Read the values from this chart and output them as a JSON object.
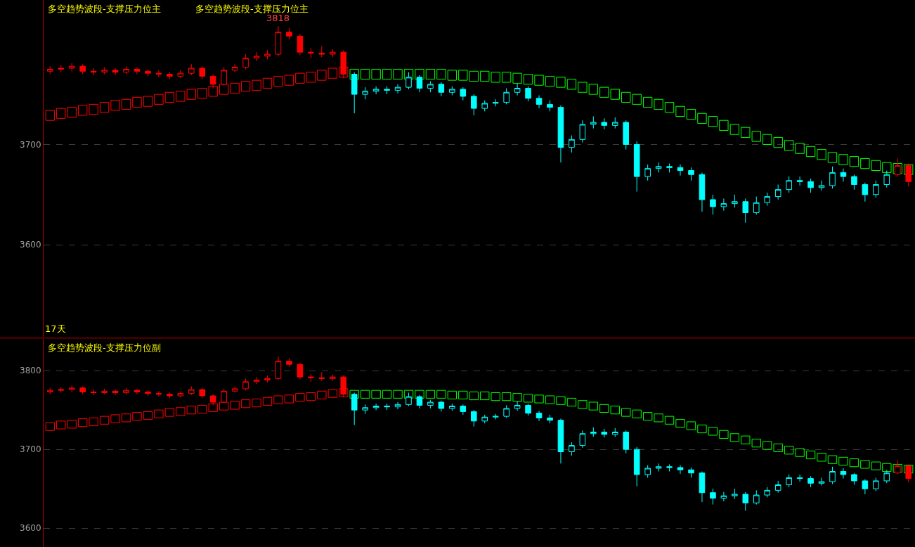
{
  "chart_data": [
    {
      "type": "candlestick",
      "title": "多空趋势波段-支撑压力位主",
      "subtitle": "多空趋势波段-支撑压力位主",
      "categories": [
        null,
        null,
        null,
        null,
        null,
        null,
        null,
        null,
        null,
        null,
        null,
        null,
        null,
        null,
        null,
        null,
        null,
        null,
        null,
        null,
        null,
        null,
        null,
        null,
        null,
        null,
        null,
        null,
        null,
        null,
        null,
        null,
        null,
        null,
        null,
        null,
        null,
        null,
        null,
        null,
        null,
        null,
        null,
        null,
        null,
        null,
        null,
        null,
        null,
        null,
        null,
        null,
        null,
        null,
        null,
        null,
        null,
        null,
        null,
        null,
        null,
        null,
        null,
        null,
        null,
        null,
        null,
        null,
        null,
        null,
        null,
        null,
        null,
        null,
        null,
        null,
        null,
        null,
        null,
        null
      ],
      "ohlc": [
        [
          3773,
          3778,
          3770,
          3775
        ],
        [
          3775,
          3779,
          3772,
          3776
        ],
        [
          3776,
          3781,
          3773,
          3778
        ],
        [
          3778,
          3780,
          3770,
          3773
        ],
        [
          3773,
          3776,
          3769,
          3772
        ],
        [
          3772,
          3777,
          3770,
          3774
        ],
        [
          3774,
          3776,
          3769,
          3772
        ],
        [
          3772,
          3778,
          3770,
          3775
        ],
        [
          3775,
          3777,
          3770,
          3773
        ],
        [
          3773,
          3775,
          3768,
          3771
        ],
        [
          3771,
          3774,
          3767,
          3770
        ],
        [
          3770,
          3772,
          3765,
          3768
        ],
        [
          3768,
          3774,
          3766,
          3771
        ],
        [
          3771,
          3780,
          3769,
          3776
        ],
        [
          3776,
          3778,
          3765,
          3768
        ],
        [
          3768,
          3770,
          3756,
          3760
        ],
        [
          3760,
          3777,
          3759,
          3774
        ],
        [
          3774,
          3780,
          3772,
          3777
        ],
        [
          3777,
          3790,
          3775,
          3786
        ],
        [
          3786,
          3792,
          3783,
          3788
        ],
        [
          3788,
          3794,
          3785,
          3790
        ],
        [
          3790,
          3818,
          3788,
          3812
        ],
        [
          3812,
          3816,
          3805,
          3808
        ],
        [
          3808,
          3810,
          3789,
          3792
        ],
        [
          3792,
          3796,
          3786,
          3791
        ],
        [
          3791,
          3798,
          3787,
          3790
        ],
        [
          3790,
          3795,
          3787,
          3792
        ],
        [
          3792,
          3794,
          3766,
          3770
        ],
        [
          3770,
          3772,
          3731,
          3750
        ],
        [
          3750,
          3757,
          3745,
          3753
        ],
        [
          3753,
          3758,
          3750,
          3755
        ],
        [
          3755,
          3758,
          3750,
          3754
        ],
        [
          3754,
          3760,
          3751,
          3757
        ],
        [
          3757,
          3772,
          3755,
          3767
        ],
        [
          3767,
          3769,
          3752,
          3756
        ],
        [
          3756,
          3763,
          3752,
          3760
        ],
        [
          3760,
          3762,
          3748,
          3752
        ],
        [
          3752,
          3758,
          3749,
          3755
        ],
        [
          3755,
          3757,
          3744,
          3748
        ],
        [
          3748,
          3750,
          3729,
          3736
        ],
        [
          3736,
          3744,
          3733,
          3741
        ],
        [
          3741,
          3745,
          3738,
          3742
        ],
        [
          3742,
          3756,
          3740,
          3752
        ],
        [
          3752,
          3761,
          3749,
          3756
        ],
        [
          3756,
          3758,
          3743,
          3746
        ],
        [
          3746,
          3749,
          3736,
          3740
        ],
        [
          3740,
          3744,
          3733,
          3737
        ],
        [
          3737,
          3739,
          3682,
          3697
        ],
        [
          3697,
          3709,
          3692,
          3705
        ],
        [
          3705,
          3724,
          3702,
          3720
        ],
        [
          3720,
          3728,
          3716,
          3722
        ],
        [
          3722,
          3726,
          3715,
          3719
        ],
        [
          3719,
          3727,
          3716,
          3722
        ],
        [
          3722,
          3724,
          3695,
          3700
        ],
        [
          3700,
          3703,
          3653,
          3668
        ],
        [
          3668,
          3680,
          3664,
          3676
        ],
        [
          3676,
          3682,
          3672,
          3678
        ],
        [
          3678,
          3681,
          3672,
          3677
        ],
        [
          3677,
          3680,
          3669,
          3674
        ],
        [
          3674,
          3677,
          3664,
          3670
        ],
        [
          3670,
          3672,
          3633,
          3645
        ],
        [
          3645,
          3650,
          3630,
          3638
        ],
        [
          3638,
          3646,
          3634,
          3641
        ],
        [
          3641,
          3650,
          3637,
          3643
        ],
        [
          3643,
          3646,
          3622,
          3632
        ],
        [
          3632,
          3648,
          3630,
          3642
        ],
        [
          3642,
          3652,
          3639,
          3648
        ],
        [
          3648,
          3660,
          3645,
          3655
        ],
        [
          3655,
          3668,
          3652,
          3664
        ],
        [
          3664,
          3668,
          3659,
          3663
        ],
        [
          3663,
          3666,
          3652,
          3657
        ],
        [
          3657,
          3664,
          3654,
          3659
        ],
        [
          3659,
          3678,
          3656,
          3672
        ],
        [
          3672,
          3676,
          3663,
          3668
        ],
        [
          3668,
          3670,
          3655,
          3660
        ],
        [
          3660,
          3662,
          3643,
          3650
        ],
        [
          3650,
          3664,
          3647,
          3660
        ],
        [
          3660,
          3674,
          3657,
          3670
        ],
        [
          3670,
          3686,
          3668,
          3679
        ],
        [
          3679,
          3681,
          3658,
          3663
        ]
      ],
      "colors": [
        "#ff0000",
        "#ff0000",
        "#ff0000",
        "#ff0000",
        "#ff0000",
        "#ff0000",
        "#ff0000",
        "#ff0000",
        "#ff0000",
        "#ff0000",
        "#ff0000",
        "#ff0000",
        "#ff0000",
        "#ff0000",
        "#ff0000",
        "#ff0000",
        "#ff0000",
        "#ff0000",
        "#ff0000",
        "#ff0000",
        "#ff0000",
        "#ff0000",
        "#ff0000",
        "#ff0000",
        "#ff0000",
        "#ff0000",
        "#ff0000",
        "#ff0000",
        "#00ffff",
        "#00ffff",
        "#00ffff",
        "#00ffff",
        "#00ffff",
        "#00ffff",
        "#00ffff",
        "#00ffff",
        "#00ffff",
        "#00ffff",
        "#00ffff",
        "#00ffff",
        "#00ffff",
        "#00ffff",
        "#00ffff",
        "#00ffff",
        "#00ffff",
        "#00ffff",
        "#00ffff",
        "#00ffff",
        "#00ffff",
        "#00ffff",
        "#00ffff",
        "#00ffff",
        "#00ffff",
        "#00ffff",
        "#00ffff",
        "#00ffff",
        "#00ffff",
        "#00ffff",
        "#00ffff",
        "#00ffff",
        "#00ffff",
        "#00ffff",
        "#00ffff",
        "#00ffff",
        "#00ffff",
        "#00ffff",
        "#00ffff",
        "#00ffff",
        "#00ffff",
        "#00ffff",
        "#00ffff",
        "#00ffff",
        "#00ffff",
        "#00ffff",
        "#00ffff",
        "#00ffff",
        "#00ffff",
        "#00ffff",
        "#ff0000",
        "#ff0000"
      ],
      "series": [
        {
          "type": "bar",
          "color": "#ff0000",
          "base": [
            3724,
            3726,
            3727,
            3729,
            3730,
            3732,
            3734,
            3735,
            3737,
            3738,
            3740,
            3742,
            3743,
            3745,
            3746,
            3748,
            3750,
            3751,
            3753,
            3754,
            3756,
            3758,
            3759,
            3761,
            3762,
            3764,
            3766,
            3767,
            null,
            null,
            null,
            null,
            null,
            null,
            null,
            null,
            null,
            null,
            null,
            null,
            null,
            null,
            null,
            null,
            null,
            null,
            null,
            null,
            null,
            null,
            null,
            null,
            null,
            null,
            null,
            null,
            null,
            null,
            null,
            null,
            null,
            null,
            null,
            null,
            null,
            null,
            null,
            null,
            null,
            null,
            null,
            null,
            null,
            null,
            null,
            null,
            null,
            null,
            null,
            null
          ],
          "values": [
            10,
            10,
            10,
            10,
            10,
            10,
            10,
            10,
            10,
            10,
            10,
            10,
            10,
            10,
            10,
            10,
            10,
            10,
            10,
            10,
            10,
            10,
            10,
            10,
            10,
            10,
            10,
            10,
            null,
            null,
            null,
            null,
            null,
            null,
            null,
            null,
            null,
            null,
            null,
            null,
            null,
            null,
            null,
            null,
            null,
            null,
            null,
            null,
            null,
            null,
            null,
            null,
            null,
            null,
            null,
            null,
            null,
            null,
            null,
            null,
            null,
            null,
            null,
            null,
            null,
            null,
            null,
            null,
            null,
            null,
            null,
            null,
            null,
            null,
            null,
            null,
            null,
            null,
            null,
            null
          ]
        },
        {
          "type": "bar",
          "color": "#00ff00",
          "base": [
            null,
            null,
            null,
            null,
            null,
            null,
            null,
            null,
            null,
            null,
            null,
            null,
            null,
            null,
            null,
            null,
            null,
            null,
            null,
            null,
            null,
            null,
            null,
            null,
            null,
            null,
            null,
            null,
            3765,
            3765,
            3765,
            3765,
            3765,
            3765,
            3765,
            3765,
            3765,
            3764,
            3764,
            3763,
            3763,
            3762,
            3762,
            3761,
            3760,
            3759,
            3758,
            3757,
            3755,
            3752,
            3750,
            3747,
            3745,
            3742,
            3740,
            3737,
            3735,
            3732,
            3728,
            3725,
            3721,
            3718,
            3714,
            3710,
            3707,
            3703,
            3700,
            3697,
            3694,
            3691,
            3688,
            3685,
            3682,
            3680,
            3678,
            3676,
            3674,
            3672,
            3671,
            3670
          ],
          "values": [
            null,
            null,
            null,
            null,
            null,
            null,
            null,
            null,
            null,
            null,
            null,
            null,
            null,
            null,
            null,
            null,
            null,
            null,
            null,
            null,
            null,
            null,
            null,
            null,
            null,
            null,
            null,
            null,
            10,
            10,
            10,
            10,
            10,
            10,
            10,
            10,
            10,
            10,
            10,
            10,
            10,
            10,
            10,
            10,
            10,
            10,
            10,
            10,
            10,
            10,
            10,
            10,
            10,
            10,
            10,
            10,
            10,
            10,
            10,
            10,
            10,
            10,
            10,
            10,
            10,
            10,
            10,
            10,
            10,
            10,
            10,
            10,
            10,
            10,
            10,
            10,
            10,
            10,
            10,
            10
          ]
        }
      ],
      "ylim": [
        3508,
        3844
      ],
      "yticks": [
        3600,
        3700
      ],
      "grid": "y",
      "tick_labels": "y",
      "ref_lines": [
        {
          "axis": "y",
          "value": 3700,
          "color": "#8b0000",
          "line_style": "dashed"
        }
      ],
      "annotations": [
        {
          "text": "3818",
          "y": 3818
        },
        "17天"
      ]
    },
    {
      "type": "candlestick",
      "title": "多空趋势波段-支撑压力位副",
      "categories": [
        null,
        null,
        null,
        null,
        null,
        null,
        null,
        null,
        null,
        null,
        null,
        null,
        null,
        null,
        null,
        null,
        null,
        null,
        null,
        null,
        null,
        null,
        null,
        null,
        null,
        null,
        null,
        null,
        null,
        null,
        null,
        null,
        null,
        null,
        null,
        null,
        null,
        null,
        null,
        null,
        null,
        null,
        null,
        null,
        null,
        null,
        null,
        null,
        null,
        null,
        null,
        null,
        null,
        null,
        null,
        null,
        null,
        null,
        null,
        null,
        null,
        null,
        null,
        null,
        null,
        null,
        null,
        null,
        null,
        null,
        null,
        null,
        null,
        null,
        null,
        null,
        null,
        null,
        null,
        null
      ],
      "ohlc": [
        [
          3773,
          3778,
          3770,
          3775
        ],
        [
          3775,
          3779,
          3772,
          3776
        ],
        [
          3776,
          3781,
          3773,
          3778
        ],
        [
          3778,
          3780,
          3770,
          3773
        ],
        [
          3773,
          3776,
          3769,
          3772
        ],
        [
          3772,
          3777,
          3770,
          3774
        ],
        [
          3774,
          3776,
          3769,
          3772
        ],
        [
          3772,
          3778,
          3770,
          3775
        ],
        [
          3775,
          3777,
          3770,
          3773
        ],
        [
          3773,
          3775,
          3768,
          3771
        ],
        [
          3771,
          3774,
          3767,
          3770
        ],
        [
          3770,
          3772,
          3765,
          3768
        ],
        [
          3768,
          3774,
          3766,
          3771
        ],
        [
          3771,
          3780,
          3769,
          3776
        ],
        [
          3776,
          3778,
          3765,
          3768
        ],
        [
          3768,
          3770,
          3756,
          3760
        ],
        [
          3760,
          3777,
          3759,
          3774
        ],
        [
          3774,
          3780,
          3772,
          3777
        ],
        [
          3777,
          3790,
          3775,
          3786
        ],
        [
          3786,
          3792,
          3783,
          3788
        ],
        [
          3788,
          3794,
          3785,
          3790
        ],
        [
          3790,
          3818,
          3788,
          3812
        ],
        [
          3812,
          3816,
          3805,
          3808
        ],
        [
          3808,
          3810,
          3789,
          3792
        ],
        [
          3792,
          3796,
          3786,
          3791
        ],
        [
          3791,
          3798,
          3787,
          3790
        ],
        [
          3790,
          3795,
          3787,
          3792
        ],
        [
          3792,
          3794,
          3766,
          3770
        ],
        [
          3770,
          3772,
          3731,
          3750
        ],
        [
          3750,
          3757,
          3745,
          3753
        ],
        [
          3753,
          3758,
          3750,
          3755
        ],
        [
          3755,
          3758,
          3750,
          3754
        ],
        [
          3754,
          3760,
          3751,
          3757
        ],
        [
          3757,
          3772,
          3755,
          3767
        ],
        [
          3767,
          3769,
          3752,
          3756
        ],
        [
          3756,
          3763,
          3752,
          3760
        ],
        [
          3760,
          3762,
          3748,
          3752
        ],
        [
          3752,
          3758,
          3749,
          3755
        ],
        [
          3755,
          3757,
          3744,
          3748
        ],
        [
          3748,
          3750,
          3729,
          3736
        ],
        [
          3736,
          3744,
          3733,
          3741
        ],
        [
          3741,
          3745,
          3738,
          3742
        ],
        [
          3742,
          3756,
          3740,
          3752
        ],
        [
          3752,
          3761,
          3749,
          3756
        ],
        [
          3756,
          3758,
          3743,
          3746
        ],
        [
          3746,
          3749,
          3736,
          3740
        ],
        [
          3740,
          3744,
          3733,
          3737
        ],
        [
          3737,
          3739,
          3682,
          3697
        ],
        [
          3697,
          3709,
          3692,
          3705
        ],
        [
          3705,
          3724,
          3702,
          3720
        ],
        [
          3720,
          3728,
          3716,
          3722
        ],
        [
          3722,
          3726,
          3715,
          3719
        ],
        [
          3719,
          3727,
          3716,
          3722
        ],
        [
          3722,
          3724,
          3695,
          3700
        ],
        [
          3700,
          3703,
          3653,
          3668
        ],
        [
          3668,
          3680,
          3664,
          3676
        ],
        [
          3676,
          3682,
          3672,
          3678
        ],
        [
          3678,
          3681,
          3672,
          3677
        ],
        [
          3677,
          3680,
          3669,
          3674
        ],
        [
          3674,
          3677,
          3664,
          3670
        ],
        [
          3670,
          3672,
          3633,
          3645
        ],
        [
          3645,
          3650,
          3630,
          3638
        ],
        [
          3638,
          3646,
          3634,
          3641
        ],
        [
          3641,
          3650,
          3637,
          3643
        ],
        [
          3643,
          3646,
          3622,
          3632
        ],
        [
          3632,
          3648,
          3630,
          3642
        ],
        [
          3642,
          3652,
          3639,
          3648
        ],
        [
          3648,
          3660,
          3645,
          3655
        ],
        [
          3655,
          3668,
          3652,
          3664
        ],
        [
          3664,
          3668,
          3659,
          3663
        ],
        [
          3663,
          3666,
          3652,
          3657
        ],
        [
          3657,
          3664,
          3654,
          3659
        ],
        [
          3659,
          3678,
          3656,
          3672
        ],
        [
          3672,
          3676,
          3663,
          3668
        ],
        [
          3668,
          3670,
          3655,
          3660
        ],
        [
          3660,
          3662,
          3643,
          3650
        ],
        [
          3650,
          3664,
          3647,
          3660
        ],
        [
          3660,
          3674,
          3657,
          3670
        ],
        [
          3670,
          3686,
          3668,
          3679
        ],
        [
          3679,
          3681,
          3658,
          3663
        ]
      ],
      "colors": [
        "#ff0000",
        "#ff0000",
        "#ff0000",
        "#ff0000",
        "#ff0000",
        "#ff0000",
        "#ff0000",
        "#ff0000",
        "#ff0000",
        "#ff0000",
        "#ff0000",
        "#ff0000",
        "#ff0000",
        "#ff0000",
        "#ff0000",
        "#ff0000",
        "#ff0000",
        "#ff0000",
        "#ff0000",
        "#ff0000",
        "#ff0000",
        "#ff0000",
        "#ff0000",
        "#ff0000",
        "#ff0000",
        "#ff0000",
        "#ff0000",
        "#ff0000",
        "#00ffff",
        "#00ffff",
        "#00ffff",
        "#00ffff",
        "#00ffff",
        "#00ffff",
        "#00ffff",
        "#00ffff",
        "#00ffff",
        "#00ffff",
        "#00ffff",
        "#00ffff",
        "#00ffff",
        "#00ffff",
        "#00ffff",
        "#00ffff",
        "#00ffff",
        "#00ffff",
        "#00ffff",
        "#00ffff",
        "#00ffff",
        "#00ffff",
        "#00ffff",
        "#00ffff",
        "#00ffff",
        "#00ffff",
        "#00ffff",
        "#00ffff",
        "#00ffff",
        "#00ffff",
        "#00ffff",
        "#00ffff",
        "#00ffff",
        "#00ffff",
        "#00ffff",
        "#00ffff",
        "#00ffff",
        "#00ffff",
        "#00ffff",
        "#00ffff",
        "#00ffff",
        "#00ffff",
        "#00ffff",
        "#00ffff",
        "#00ffff",
        "#00ffff",
        "#00ffff",
        "#00ffff",
        "#00ffff",
        "#00ffff",
        "#ff0000",
        "#ff0000"
      ],
      "series": [
        {
          "type": "bar",
          "color": "#ff0000",
          "base": [
            3724,
            3726,
            3727,
            3729,
            3730,
            3732,
            3734,
            3735,
            3737,
            3738,
            3740,
            3742,
            3743,
            3745,
            3746,
            3748,
            3750,
            3751,
            3753,
            3754,
            3756,
            3758,
            3759,
            3761,
            3762,
            3764,
            3766,
            3767,
            null,
            null,
            null,
            null,
            null,
            null,
            null,
            null,
            null,
            null,
            null,
            null,
            null,
            null,
            null,
            null,
            null,
            null,
            null,
            null,
            null,
            null,
            null,
            null,
            null,
            null,
            null,
            null,
            null,
            null,
            null,
            null,
            null,
            null,
            null,
            null,
            null,
            null,
            null,
            null,
            null,
            null,
            null,
            null,
            null,
            null,
            null,
            null,
            null,
            null,
            null,
            null
          ],
          "values": [
            10,
            10,
            10,
            10,
            10,
            10,
            10,
            10,
            10,
            10,
            10,
            10,
            10,
            10,
            10,
            10,
            10,
            10,
            10,
            10,
            10,
            10,
            10,
            10,
            10,
            10,
            10,
            10,
            null,
            null,
            null,
            null,
            null,
            null,
            null,
            null,
            null,
            null,
            null,
            null,
            null,
            null,
            null,
            null,
            null,
            null,
            null,
            null,
            null,
            null,
            null,
            null,
            null,
            null,
            null,
            null,
            null,
            null,
            null,
            null,
            null,
            null,
            null,
            null,
            null,
            null,
            null,
            null,
            null,
            null,
            null,
            null,
            null,
            null,
            null,
            null,
            null,
            null,
            null,
            null
          ]
        },
        {
          "type": "bar",
          "color": "#00ff00",
          "base": [
            null,
            null,
            null,
            null,
            null,
            null,
            null,
            null,
            null,
            null,
            null,
            null,
            null,
            null,
            null,
            null,
            null,
            null,
            null,
            null,
            null,
            null,
            null,
            null,
            null,
            null,
            null,
            null,
            3765,
            3765,
            3765,
            3765,
            3765,
            3765,
            3765,
            3765,
            3765,
            3764,
            3764,
            3763,
            3763,
            3762,
            3762,
            3761,
            3760,
            3759,
            3758,
            3757,
            3755,
            3752,
            3750,
            3747,
            3745,
            3742,
            3740,
            3737,
            3735,
            3732,
            3728,
            3725,
            3721,
            3718,
            3714,
            3710,
            3707,
            3703,
            3700,
            3697,
            3694,
            3691,
            3688,
            3685,
            3682,
            3680,
            3678,
            3676,
            3674,
            3672,
            3671,
            3670
          ],
          "values": [
            null,
            null,
            null,
            null,
            null,
            null,
            null,
            null,
            null,
            null,
            null,
            null,
            null,
            null,
            null,
            null,
            null,
            null,
            null,
            null,
            null,
            null,
            null,
            null,
            null,
            null,
            null,
            null,
            10,
            10,
            10,
            10,
            10,
            10,
            10,
            10,
            10,
            10,
            10,
            10,
            10,
            10,
            10,
            10,
            10,
            10,
            10,
            10,
            10,
            10,
            10,
            10,
            10,
            10,
            10,
            10,
            10,
            10,
            10,
            10,
            10,
            10,
            10,
            10,
            10,
            10,
            10,
            10,
            10,
            10,
            10,
            10,
            10,
            10,
            10,
            10,
            10,
            10,
            10,
            10
          ]
        }
      ],
      "ylim": [
        3576,
        3840
      ],
      "yticks": [
        3600,
        3700,
        3800
      ],
      "grid": "y",
      "tick_labels": "y"
    }
  ]
}
